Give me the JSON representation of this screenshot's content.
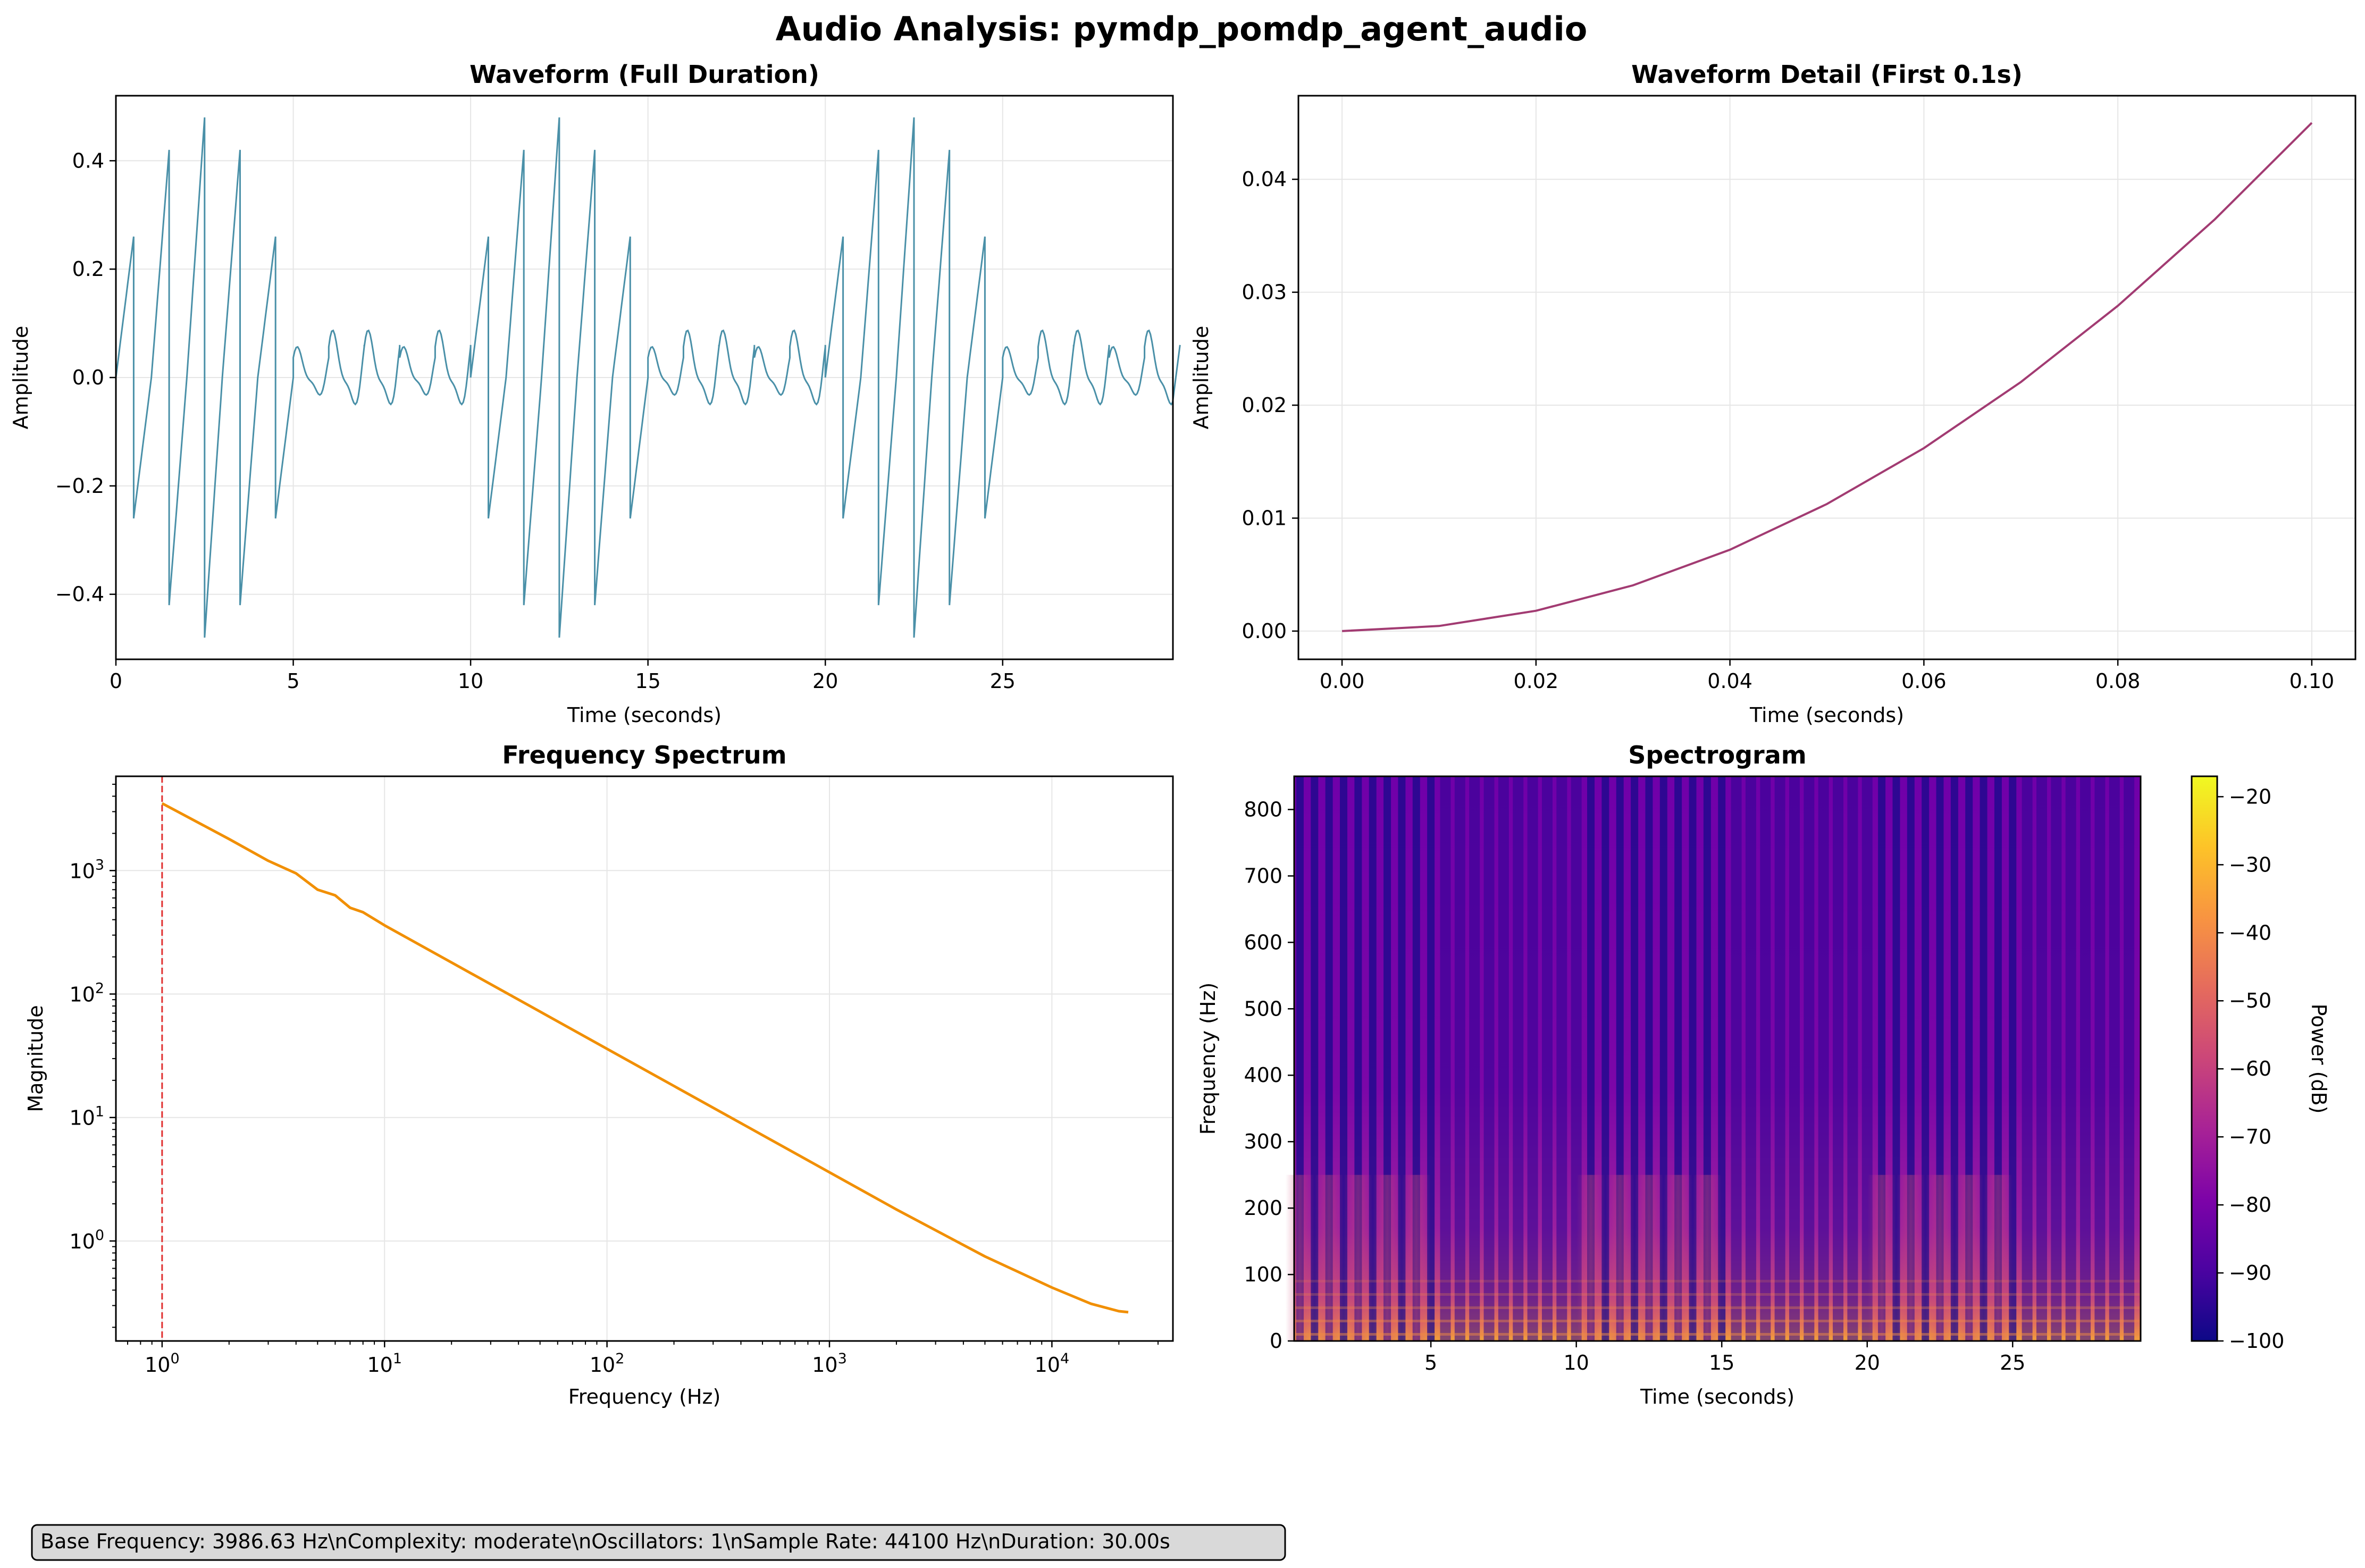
{
  "figure_title": "Audio Analysis: pymdp_pomdp_agent_audio",
  "info_box": "Base Frequency: 3986.63 Hz\\nComplexity: moderate\\nOscillators: 1\\nSample Rate: 44100 Hz\\nDuration: 30.00s",
  "colors": {
    "waveform": "#4a90a8",
    "detail": "#a23b72",
    "spectrum": "#f18f01",
    "marker": "#e03030",
    "grid": "#e6e6e6",
    "info_box_bg": "#d9d9d9"
  },
  "chart_data": [
    {
      "id": "waveform",
      "type": "line",
      "title": "Waveform (Full Duration)",
      "xlabel": "Time (seconds)",
      "ylabel": "Amplitude",
      "xlim": [
        0,
        29.8
      ],
      "ylim": [
        -0.52,
        0.52
      ],
      "xticks": [
        0,
        5,
        10,
        15,
        20,
        25
      ],
      "yticks": [
        -0.4,
        -0.2,
        0.0,
        0.2,
        0.4
      ],
      "ytick_labels": [
        "−0.4",
        "−0.2",
        "0.0",
        "0.2",
        "0.4"
      ],
      "grid": true,
      "segment_duration": 1.0,
      "segment_peaks": [
        0.26,
        0.42,
        0.48,
        0.42,
        0.26,
        0.065,
        0.1,
        0.1,
        0.065,
        0.1,
        0.26,
        0.42,
        0.48,
        0.42,
        0.26,
        0.065,
        0.1,
        0.1,
        0.065,
        0.1,
        0.26,
        0.42,
        0.48,
        0.42,
        0.26,
        0.065,
        0.1,
        0.1,
        0.065,
        0.1
      ]
    },
    {
      "id": "detail",
      "type": "line",
      "title": "Waveform Detail (First 0.1s)",
      "xlabel": "Time (seconds)",
      "ylabel": "Amplitude",
      "xlim": [
        -0.0045,
        0.1045
      ],
      "ylim": [
        -0.0025,
        0.0474
      ],
      "xticks": [
        0.0,
        0.02,
        0.04,
        0.06,
        0.08,
        0.1
      ],
      "xtick_labels": [
        "0.00",
        "0.02",
        "0.04",
        "0.06",
        "0.08",
        "0.10"
      ],
      "yticks": [
        0.0,
        0.01,
        0.02,
        0.03,
        0.04
      ],
      "ytick_labels": [
        "0.00",
        "0.01",
        "0.02",
        "0.03",
        "0.04"
      ],
      "grid": true,
      "x": [
        0.0,
        0.01,
        0.02,
        0.03,
        0.04,
        0.05,
        0.06,
        0.07,
        0.08,
        0.09,
        0.1
      ],
      "y": [
        0.0,
        0.00045,
        0.0018,
        0.00405,
        0.0072,
        0.01125,
        0.0162,
        0.02205,
        0.0288,
        0.03645,
        0.045
      ]
    },
    {
      "id": "spectrum",
      "type": "line",
      "title": "Frequency Spectrum",
      "xlabel": "Frequency (Hz)",
      "ylabel": "Magnitude",
      "xscale": "log",
      "yscale": "log",
      "xlim": [
        0.62,
        35000
      ],
      "ylim": [
        0.155,
        5800
      ],
      "xticks": [
        1,
        10,
        100,
        1000,
        10000
      ],
      "xtick_exponents": [
        "0",
        "1",
        "2",
        "3",
        "4"
      ],
      "yticks": [
        1,
        10,
        100,
        1000
      ],
      "ytick_exponents": [
        "0",
        "1",
        "2",
        "3"
      ],
      "tick_base": "10",
      "grid": true,
      "marker_frequency": 1,
      "x": [
        1,
        2,
        3,
        4,
        5,
        6,
        7,
        8,
        10,
        20,
        50,
        100,
        200,
        500,
        1000,
        2000,
        5000,
        10000,
        15000,
        20000,
        22050
      ],
      "y": [
        3500,
        1800,
        1200,
        950,
        700,
        630,
        500,
        460,
        360,
        180,
        72,
        36,
        18,
        7.2,
        3.6,
        1.8,
        0.75,
        0.42,
        0.31,
        0.27,
        0.265
      ]
    },
    {
      "id": "spectrogram",
      "type": "heatmap",
      "title": "Spectrogram",
      "xlabel": "Time (seconds)",
      "ylabel": "Frequency (Hz)",
      "xlim": [
        0.3,
        29.4
      ],
      "ylim": [
        0,
        850
      ],
      "xticks": [
        5,
        10,
        15,
        20,
        25
      ],
      "yticks": [
        0,
        100,
        200,
        300,
        400,
        500,
        600,
        700,
        800
      ],
      "colorbar_label": "Power (dB)",
      "colorbar_range": [
        -100,
        -17
      ],
      "colorbar_ticks": [
        -100,
        -90,
        -80,
        -70,
        -60,
        -50,
        -40,
        -30,
        -20
      ],
      "colorbar_tick_labels": [
        "−100",
        "−90",
        "−80",
        "−70",
        "−60",
        "−50",
        "−40",
        "−30",
        "−20"
      ],
      "colormap": "plasma"
    }
  ]
}
